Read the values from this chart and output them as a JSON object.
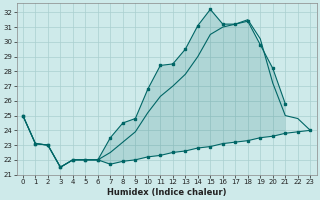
{
  "xlabel": "Humidex (Indice chaleur)",
  "bg_color": "#ceeaea",
  "grid_color": "#aacfcf",
  "line_color": "#006666",
  "fill_color": "#ceeaea",
  "xlim": [
    -0.5,
    23.5
  ],
  "ylim": [
    21,
    32.6
  ],
  "yticks": [
    21,
    22,
    23,
    24,
    25,
    26,
    27,
    28,
    29,
    30,
    31,
    32
  ],
  "xticks": [
    0,
    1,
    2,
    3,
    4,
    5,
    6,
    7,
    8,
    9,
    10,
    11,
    12,
    13,
    14,
    15,
    16,
    17,
    18,
    19,
    20,
    21,
    22,
    23
  ],
  "line1_x": [
    0,
    1,
    2,
    3,
    4,
    5,
    6,
    7,
    8,
    9,
    10,
    11,
    12,
    13,
    14,
    15,
    16,
    17,
    18,
    19,
    20,
    21
  ],
  "line1_y": [
    25.0,
    23.1,
    23.0,
    21.5,
    22.0,
    22.0,
    22.0,
    23.5,
    24.5,
    24.8,
    26.8,
    28.4,
    28.5,
    29.5,
    31.1,
    32.2,
    31.2,
    31.2,
    31.4,
    29.8,
    28.2,
    25.8
  ],
  "line2_x": [
    0,
    1,
    2,
    3,
    4,
    5,
    6,
    7,
    8,
    9,
    10,
    11,
    12,
    13,
    14,
    15,
    16,
    17,
    18,
    19,
    20,
    21,
    22,
    23
  ],
  "line2_y": [
    25.0,
    23.1,
    23.0,
    21.5,
    22.0,
    22.0,
    22.0,
    22.5,
    23.2,
    23.9,
    25.2,
    26.3,
    27.0,
    27.8,
    29.0,
    30.5,
    31.0,
    31.2,
    31.5,
    30.2,
    27.2,
    25.0,
    24.8,
    24.0
  ],
  "line3_x": [
    0,
    1,
    2,
    3,
    4,
    5,
    6,
    7,
    8,
    9,
    10,
    11,
    12,
    13,
    14,
    15,
    16,
    17,
    18,
    19,
    20,
    21,
    22,
    23
  ],
  "line3_y": [
    25.0,
    23.1,
    23.0,
    21.5,
    22.0,
    22.0,
    22.0,
    21.7,
    21.9,
    22.0,
    22.2,
    22.3,
    22.5,
    22.6,
    22.8,
    22.9,
    23.1,
    23.2,
    23.3,
    23.5,
    23.6,
    23.8,
    23.9,
    24.0
  ],
  "poly_y_bot": [
    25.0,
    23.1,
    23.0,
    21.5,
    22.0,
    22.0,
    22.0,
    21.7,
    21.9,
    22.0,
    22.2,
    22.3,
    22.5,
    22.6,
    22.8,
    22.9,
    23.1,
    23.2,
    23.3,
    23.5,
    23.6,
    23.8
  ]
}
